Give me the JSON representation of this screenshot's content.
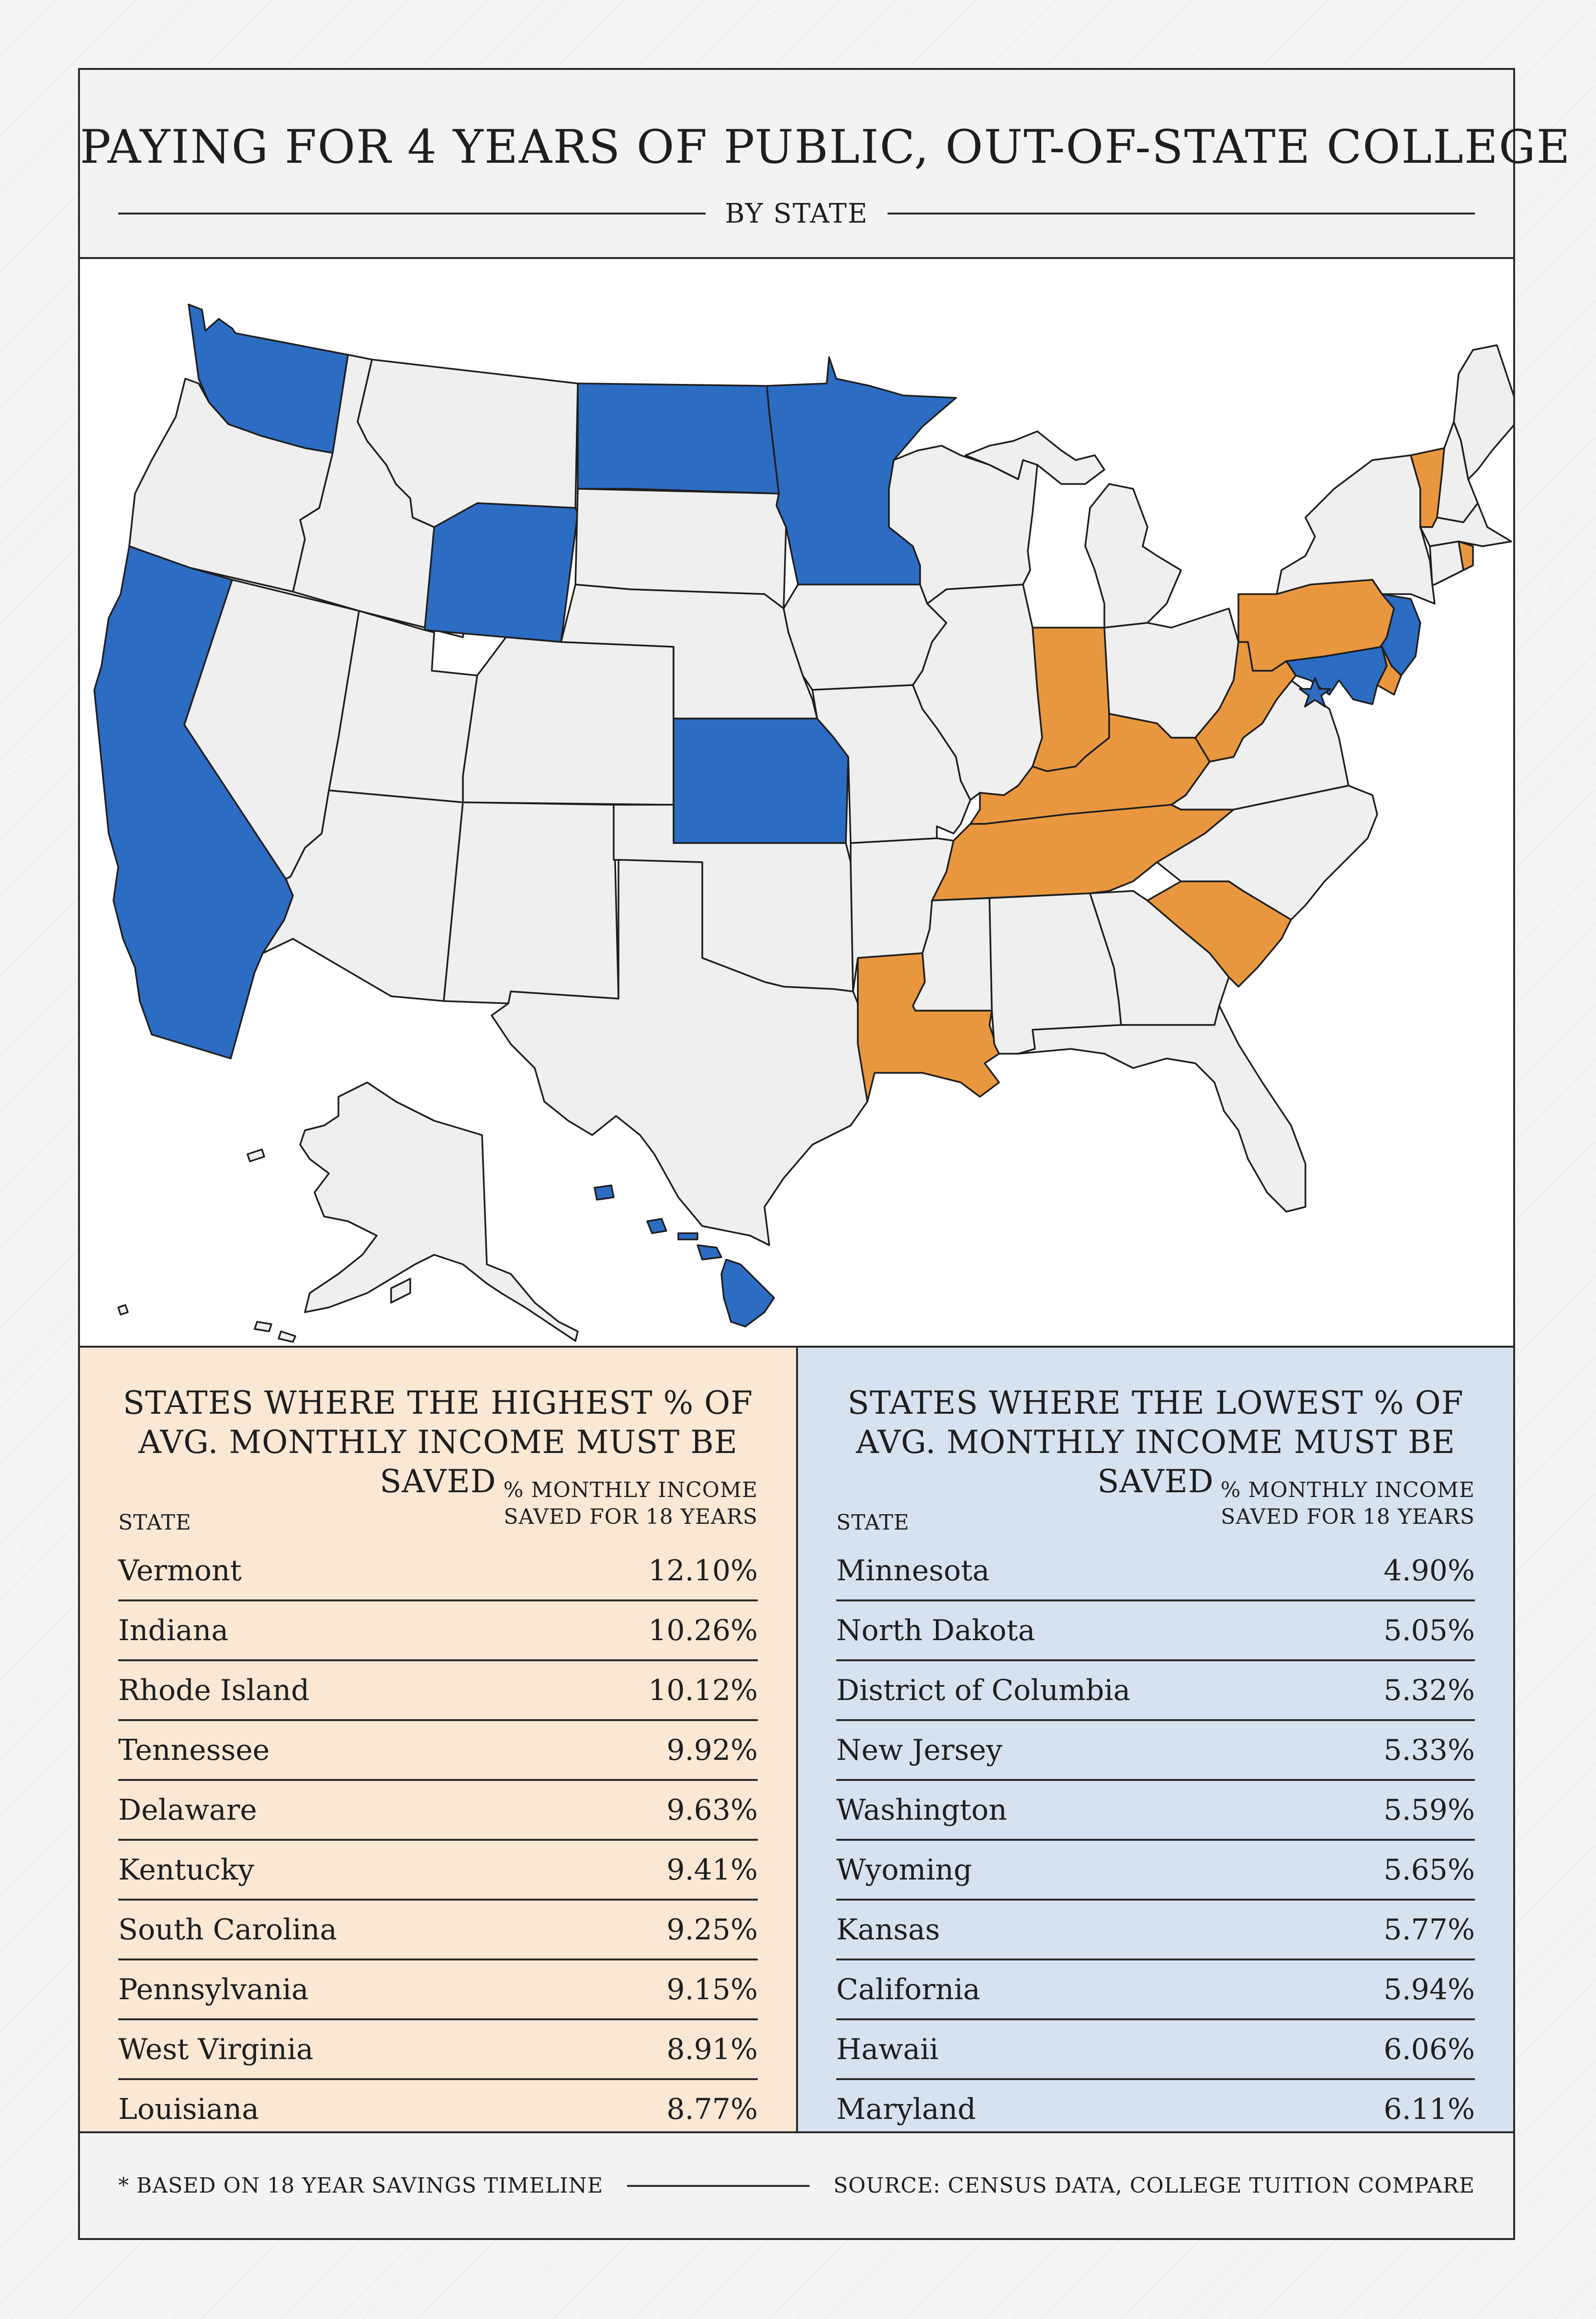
{
  "header": {
    "title": "PAYING FOR 4 YEARS OF PUBLIC, OUT-OF-STATE COLLEGE",
    "subtitle": "BY STATE"
  },
  "colors": {
    "highest": "#e9973f",
    "lowest": "#2d6cc3",
    "neutral": "#efefef",
    "outline": "#1e1e1e"
  },
  "map": {
    "highest_states": [
      "Vermont",
      "Indiana",
      "Rhode Island",
      "Tennessee",
      "Delaware",
      "Kentucky",
      "South Carolina",
      "Pennsylvania",
      "West Virginia",
      "Louisiana"
    ],
    "lowest_states": [
      "Minnesota",
      "North Dakota",
      "District of Columbia",
      "New Jersey",
      "Washington",
      "Wyoming",
      "Kansas",
      "California",
      "Hawaii",
      "Maryland"
    ]
  },
  "chart_data": [
    {
      "type": "table",
      "title": "STATES WHERE THE HIGHEST % OF AVG. MONTHLY INCOME MUST BE SAVED",
      "columns": [
        "STATE",
        "% MONTHLY INCOME SAVED FOR 18 YEARS"
      ],
      "column_pct_lines": [
        "% MONTHLY INCOME",
        "SAVED FOR 18 YEARS"
      ],
      "categories": [
        "Vermont",
        "Indiana",
        "Rhode Island",
        "Tennessee",
        "Delaware",
        "Kentucky",
        "South Carolina",
        "Pennsylvania",
        "West Virginia",
        "Louisiana"
      ],
      "values": [
        "12.10%",
        "10.26%",
        "10.12%",
        "9.92%",
        "9.63%",
        "9.41%",
        "9.25%",
        "9.15%",
        "8.91%",
        "8.77%"
      ]
    },
    {
      "type": "table",
      "title": "STATES WHERE THE LOWEST % OF AVG. MONTHLY INCOME MUST BE SAVED",
      "columns": [
        "STATE",
        "% MONTHLY INCOME SAVED FOR 18 YEARS"
      ],
      "column_pct_lines": [
        "% MONTHLY INCOME",
        "SAVED FOR 18 YEARS"
      ],
      "categories": [
        "Minnesota",
        "North Dakota",
        "District of Columbia",
        "New Jersey",
        "Washington",
        "Wyoming",
        "Kansas",
        "California",
        "Hawaii",
        "Maryland"
      ],
      "values": [
        "4.90%",
        "5.05%",
        "5.32%",
        "5.33%",
        "5.59%",
        "5.65%",
        "5.77%",
        "5.94%",
        "6.06%",
        "6.11%"
      ]
    }
  ],
  "footer": {
    "footnote": "* BASED ON 18 YEAR SAVINGS TIMELINE",
    "source": "SOURCE: CENSUS DATA, COLLEGE TUITION COMPARE"
  }
}
